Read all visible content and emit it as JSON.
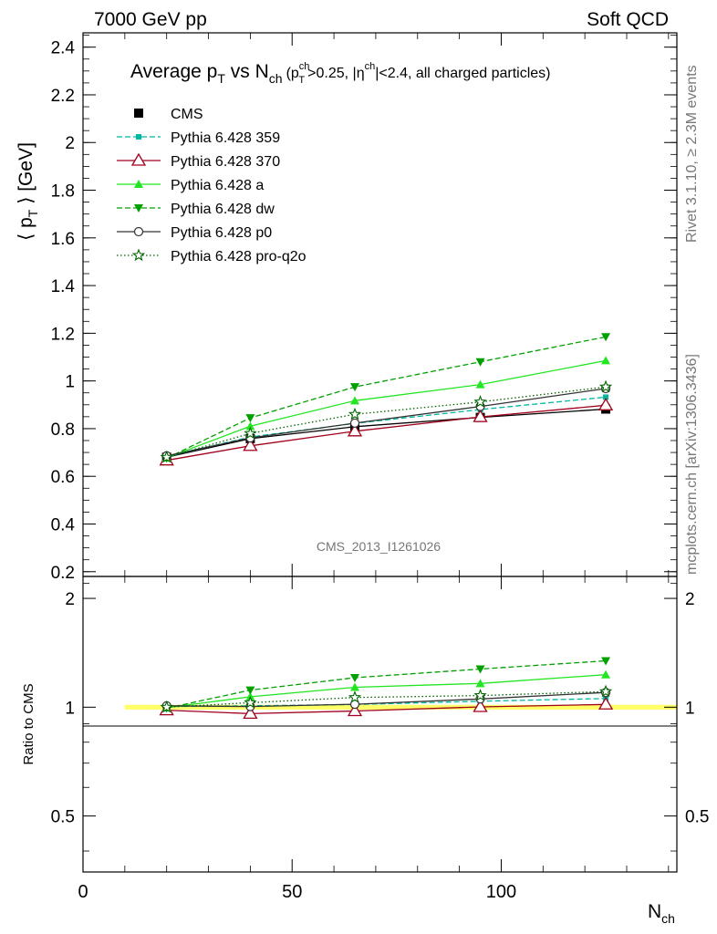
{
  "header": {
    "left_label": "7000 GeV pp",
    "right_label": "Soft QCD"
  },
  "side_text": {
    "upper": "Rivet 3.1.10, ≥ 2.3M events",
    "lower": "mcplots.cern.ch [arXiv:1306.3436]"
  },
  "watermark": "CMS_2013_I1261026",
  "chart_data": [
    {
      "panel": "main",
      "type": "line",
      "title_main": "Average p",
      "title_main_sub": "T",
      "title_vs": " vs N",
      "title_vs_sub": "ch",
      "title_cut": "(p",
      "title_cut_sup": "ch",
      "title_cut_sub": "T",
      "title_cut_rest": ">0.25, |η",
      "title_eta_sup": "ch",
      "title_cut_end": "|<2.4, all charged particles)",
      "ylabel": "⟨ p",
      "ylabel_sub": "T",
      "ylabel_rest": " ⟩ [GeV]",
      "xlim": [
        0,
        142
      ],
      "ylim": [
        0.18,
        2.46
      ],
      "yticks": [
        0.2,
        0.4,
        0.6,
        0.8,
        1,
        1.2,
        1.4,
        1.6,
        1.8,
        2,
        2.2,
        2.4
      ],
      "ytick_labels": [
        "0.2",
        "0.4",
        "0.6",
        "0.8",
        "1",
        "1.2",
        "1.4",
        "1.6",
        "1.8",
        "2",
        "2.2",
        "2.4"
      ],
      "legend_position": "top-left",
      "x": [
        20,
        40,
        65,
        95,
        125
      ],
      "series": [
        {
          "name": "CMS",
          "values": [
            0.68,
            0.758,
            0.808,
            0.847,
            0.882
          ],
          "color": "#000000",
          "dash": "none",
          "marker": "square"
        },
        {
          "name": "Pythia 6.428 359",
          "values": [
            0.683,
            0.765,
            0.822,
            0.88,
            0.932
          ],
          "color": "#00b7a0",
          "dash": "6,3",
          "marker": "small-square"
        },
        {
          "name": "Pythia 6.428 370",
          "values": [
            0.667,
            0.728,
            0.789,
            0.849,
            0.898
          ],
          "color": "#a0001c",
          "dash": "none",
          "marker": "open-triangle"
        },
        {
          "name": "Pythia 6.428 a",
          "values": [
            0.678,
            0.81,
            0.917,
            0.985,
            1.085
          ],
          "color": "#22e622",
          "dash": "none",
          "marker": "triangle"
        },
        {
          "name": "Pythia 6.428 dw",
          "values": [
            0.676,
            0.845,
            0.975,
            1.08,
            1.185
          ],
          "color": "#00a000",
          "dash": "6,3",
          "marker": "triangle-down"
        },
        {
          "name": "Pythia 6.428 p0",
          "values": [
            0.686,
            0.761,
            0.823,
            0.893,
            0.968
          ],
          "color": "#333333",
          "dash": "none",
          "marker": "open-circle"
        },
        {
          "name": "Pythia 6.428 pro-q2o",
          "values": [
            0.68,
            0.78,
            0.86,
            0.912,
            0.975
          ],
          "color": "#006400",
          "dash": "1.5,2.5",
          "marker": "open-star"
        }
      ]
    },
    {
      "panel": "ratio",
      "type": "line",
      "ylabel": "Ratio to CMS",
      "xlabel": "N",
      "xlabel_sub": "ch",
      "xlim": [
        0,
        142
      ],
      "ylim": [
        0.35,
        2.3
      ],
      "yticks": [
        0.5,
        1,
        2
      ],
      "ytick_labels": [
        "0.5",
        "1",
        "2"
      ],
      "xticks": [
        0,
        50,
        100
      ],
      "xtick_labels": [
        "0",
        "50",
        "100"
      ],
      "band": {
        "x": [
          10,
          142
        ],
        "range": [
          0.985,
          1.015
        ],
        "color": "#ffff66"
      },
      "x": [
        20,
        40,
        65,
        95,
        125
      ],
      "series": [
        {
          "name": "Pythia 6.428 359",
          "values": [
            1.004,
            1.009,
            1.017,
            1.039,
            1.057
          ],
          "color": "#00b7a0",
          "dash": "6,3",
          "marker": "small-square"
        },
        {
          "name": "Pythia 6.428 370",
          "values": [
            0.981,
            0.96,
            0.976,
            1.002,
            1.018
          ],
          "color": "#a0001c",
          "dash": "none",
          "marker": "open-triangle"
        },
        {
          "name": "Pythia 6.428 a",
          "values": [
            0.997,
            1.069,
            1.135,
            1.163,
            1.23
          ],
          "color": "#22e622",
          "dash": "none",
          "marker": "triangle"
        },
        {
          "name": "Pythia 6.428 dw",
          "values": [
            0.994,
            1.115,
            1.207,
            1.275,
            1.344
          ],
          "color": "#00a000",
          "dash": "6,3",
          "marker": "triangle-down"
        },
        {
          "name": "Pythia 6.428 p0",
          "values": [
            1.009,
            1.004,
            1.019,
            1.054,
            1.098
          ],
          "color": "#333333",
          "dash": "none",
          "marker": "open-circle"
        },
        {
          "name": "Pythia 6.428 pro-q2o",
          "values": [
            1.0,
            1.029,
            1.064,
            1.077,
            1.105
          ],
          "color": "#006400",
          "dash": "1.5,2.5",
          "marker": "open-star"
        }
      ]
    }
  ]
}
